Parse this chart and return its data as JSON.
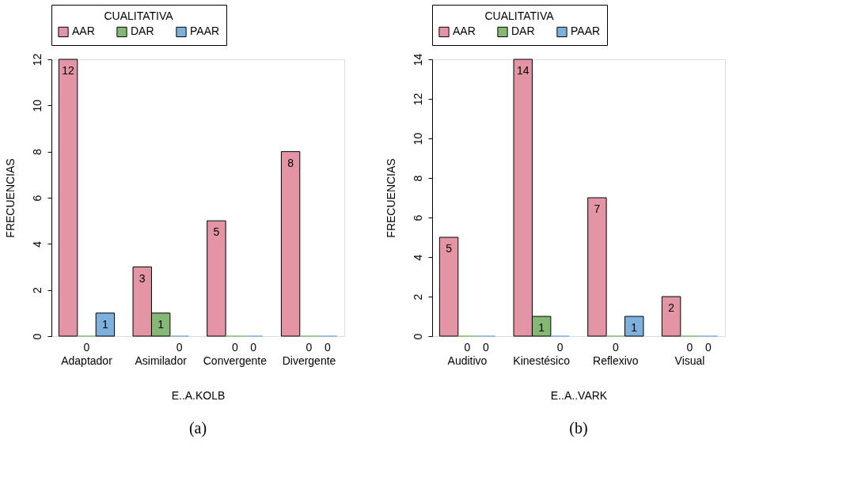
{
  "chart_data": [
    {
      "type": "bar",
      "xlabel": "E..A.KOLB",
      "ylabel": "FRECUENCIAS",
      "legend_title": "CUALITATIVA",
      "legend": "top",
      "data_labels": true,
      "grid": false,
      "categories": [
        "Adaptador",
        "Asimilador",
        "Convergente",
        "Divergente"
      ],
      "series": [
        {
          "name": "AAR",
          "color": "#e495a5",
          "values": [
            12,
            3,
            5,
            8
          ]
        },
        {
          "name": "DAR",
          "color": "#86b875",
          "values": [
            0,
            1,
            0,
            0
          ]
        },
        {
          "name": "PAAR",
          "color": "#7db0dd",
          "values": [
            1,
            0,
            0,
            0
          ]
        }
      ],
      "ylim": [
        0,
        12
      ],
      "yticks": [
        0,
        2,
        4,
        6,
        8,
        10,
        12
      ],
      "annotations": [
        "(a)"
      ]
    },
    {
      "type": "bar",
      "xlabel": "E..A..VARK",
      "ylabel": "FRECUENCIAS",
      "legend_title": "CUALITATIVA",
      "legend": "top",
      "data_labels": true,
      "grid": false,
      "categories": [
        "Auditivo",
        "Kinestésico",
        "Reflexivo",
        "Visual"
      ],
      "series": [
        {
          "name": "AAR",
          "color": "#e495a5",
          "values": [
            5,
            14,
            7,
            2
          ]
        },
        {
          "name": "DAR",
          "color": "#86b875",
          "values": [
            0,
            1,
            0,
            0
          ]
        },
        {
          "name": "PAAR",
          "color": "#7db0dd",
          "values": [
            0,
            0,
            1,
            0
          ]
        }
      ],
      "ylim": [
        0,
        14
      ],
      "yticks": [
        0,
        2,
        4,
        6,
        8,
        10,
        12,
        14
      ],
      "annotations": [
        "(b)"
      ]
    }
  ]
}
